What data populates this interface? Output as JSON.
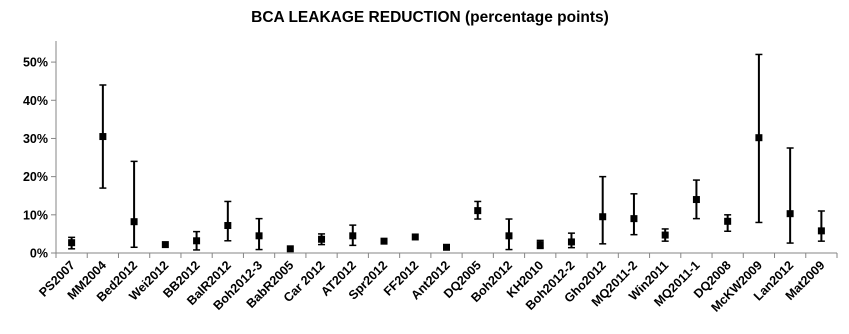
{
  "chart_data": {
    "type": "scatter",
    "title": "BCA LEAKAGE REDUCTION (percentage points)",
    "xlabel": "",
    "ylabel": "",
    "ylim": [
      0,
      55
    ],
    "yticks": [
      0,
      10,
      20,
      30,
      40,
      50
    ],
    "ytick_labels": [
      "0%",
      "10%",
      "20%",
      "30%",
      "40%",
      "50%"
    ],
    "grid": false,
    "legend": "none",
    "marker_color": "#000000",
    "categories": [
      "PS2007",
      "MM2004",
      "Bed2012",
      "Wei2012",
      "BB2012",
      "BalR2012",
      "Boh2012-3",
      "BabR2005",
      "Car 2012",
      "AT2012",
      "Spr2012",
      "FF2012",
      "Ant2012",
      "DQ2005",
      "Boh2012",
      "KH2010",
      "Boh2012-2",
      "Gho2012",
      "MQ2011-2",
      "Win2011",
      "MQ2011-1",
      "DQ2008",
      "McKW2009",
      "Lan2012",
      "Mat2009"
    ],
    "values": [
      2.7,
      30.5,
      8.2,
      2.2,
      3.2,
      7.2,
      4.5,
      1.1,
      3.6,
      4.5,
      3.1,
      4.2,
      1.5,
      11.1,
      4.5,
      2.2,
      2.9,
      9.5,
      9.0,
      4.7,
      14.0,
      8.3,
      30.2,
      10.3,
      5.8
    ],
    "error_low": [
      1.1,
      17.0,
      1.5,
      null,
      0.8,
      3.2,
      0.9,
      null,
      2.2,
      2.0,
      null,
      null,
      0.9,
      8.9,
      0.9,
      1.2,
      1.4,
      2.4,
      4.8,
      3.1,
      9.0,
      5.7,
      8.0,
      2.6,
      3.1
    ],
    "error_high": [
      4.1,
      44.0,
      24.0,
      null,
      5.6,
      13.5,
      9.0,
      null,
      5.0,
      7.3,
      null,
      null,
      2.1,
      13.5,
      8.9,
      3.3,
      5.2,
      20.0,
      15.5,
      6.3,
      19.1,
      10.0,
      52.0,
      27.5,
      11.0
    ]
  }
}
